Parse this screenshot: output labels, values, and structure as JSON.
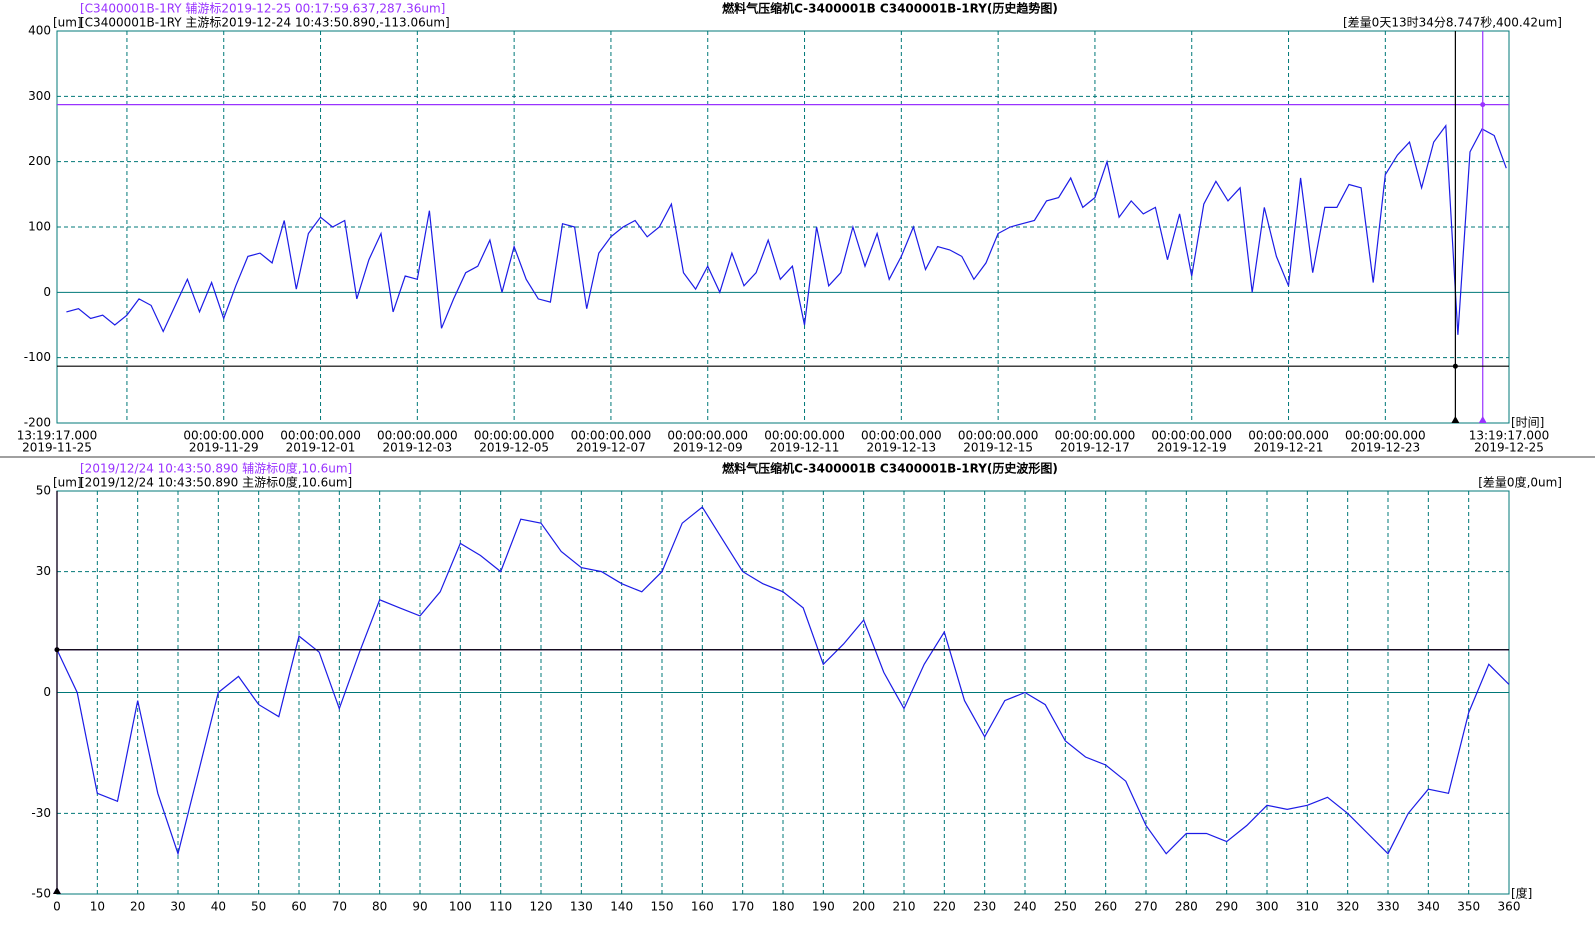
{
  "chart_data": [
    {
      "type": "line",
      "title": "燃料气压缩机C-3400001B C3400001B-1RY(历史趋势图)",
      "y_label": "[um]",
      "x_label": "[时间]",
      "diff_label": "[差量0天13时34分8.747秒,400.42um]",
      "cursors": [
        {
          "label": "[C3400001B-1RY 辅游标2019-12-25 00:17:59.637,287.36um]",
          "x": "2019-12-25 00:17:59.637",
          "y": 287.36,
          "color": "#9933ff"
        },
        {
          "label": "[C3400001B-1RY 主游标2019-12-24 10:43:50.890,-113.06um]",
          "x": "2019-12-24 10:43:50.890",
          "y": -113.06,
          "color": "#000000"
        }
      ],
      "xlim": [
        "2019-11-25 13:19:17.000",
        "2019-12-25 13:19:17.000"
      ],
      "xticks": [
        {
          "value": "2019-11-25 13:19:17.000",
          "label": [
            "13:19:17.000",
            "2019-11-25"
          ]
        },
        {
          "value": "2019-11-27 00:00:00.000",
          "label": null
        },
        {
          "value": "2019-11-29 00:00:00.000",
          "label": [
            "00:00:00.000",
            "2019-11-29"
          ]
        },
        {
          "value": "2019-12-01 00:00:00.000",
          "label": [
            "00:00:00.000",
            "2019-12-01"
          ]
        },
        {
          "value": "2019-12-03 00:00:00.000",
          "label": [
            "00:00:00.000",
            "2019-12-03"
          ]
        },
        {
          "value": "2019-12-05 00:00:00.000",
          "label": [
            "00:00:00.000",
            "2019-12-05"
          ]
        },
        {
          "value": "2019-12-07 00:00:00.000",
          "label": [
            "00:00:00.000",
            "2019-12-07"
          ]
        },
        {
          "value": "2019-12-09 00:00:00.000",
          "label": [
            "00:00:00.000",
            "2019-12-09"
          ]
        },
        {
          "value": "2019-12-11 00:00:00.000",
          "label": [
            "00:00:00.000",
            "2019-12-11"
          ]
        },
        {
          "value": "2019-12-13 00:00:00.000",
          "label": [
            "00:00:00.000",
            "2019-12-13"
          ]
        },
        {
          "value": "2019-12-15 00:00:00.000",
          "label": [
            "00:00:00.000",
            "2019-12-15"
          ]
        },
        {
          "value": "2019-12-17 00:00:00.000",
          "label": [
            "00:00:00.000",
            "2019-12-17"
          ]
        },
        {
          "value": "2019-12-19 00:00:00.000",
          "label": [
            "00:00:00.000",
            "2019-12-19"
          ]
        },
        {
          "value": "2019-12-21 00:00:00.000",
          "label": [
            "00:00:00.000",
            "2019-12-21"
          ]
        },
        {
          "value": "2019-12-23 00:00:00.000",
          "label": [
            "00:00:00.000",
            "2019-12-23"
          ]
        },
        {
          "value": "2019-12-25 13:19:17.000",
          "label": [
            "13:19:17.000",
            "2019-12-25"
          ]
        }
      ],
      "ylim": [
        -200,
        400
      ],
      "yticks": [
        -200,
        -100,
        0,
        100,
        200,
        300,
        400
      ],
      "grid": true,
      "zero_line": true,
      "frame_color": "#007878",
      "series": [
        {
          "color": "#1c1ce6",
          "x": [
            "2019-11-25 18:00",
            "2019-11-26 00:00",
            "2019-11-26 06:00",
            "2019-11-26 12:00",
            "2019-11-26 18:00",
            "2019-11-27 00:00",
            "2019-11-27 06:00",
            "2019-11-27 12:00",
            "2019-11-27 18:00",
            "2019-11-28 00:00",
            "2019-11-28 06:00",
            "2019-11-28 12:00",
            "2019-11-28 18:00",
            "2019-11-29 00:00",
            "2019-11-29 06:00",
            "2019-11-29 12:00",
            "2019-11-29 18:00",
            "2019-11-30 00:00",
            "2019-11-30 06:00",
            "2019-11-30 12:00",
            "2019-11-30 18:00",
            "2019-12-01 00:00",
            "2019-12-01 06:00",
            "2019-12-01 12:00",
            "2019-12-01 18:00",
            "2019-12-02 00:00",
            "2019-12-02 06:00",
            "2019-12-02 12:00",
            "2019-12-02 18:00",
            "2019-12-03 00:00",
            "2019-12-03 06:00",
            "2019-12-03 12:00",
            "2019-12-03 18:00",
            "2019-12-04 00:00",
            "2019-12-04 06:00",
            "2019-12-04 12:00",
            "2019-12-04 18:00",
            "2019-12-05 00:00",
            "2019-12-05 06:00",
            "2019-12-05 12:00",
            "2019-12-05 18:00",
            "2019-12-06 00:00",
            "2019-12-06 06:00",
            "2019-12-06 12:00",
            "2019-12-06 18:00",
            "2019-12-07 00:00",
            "2019-12-07 06:00",
            "2019-12-07 12:00",
            "2019-12-07 18:00",
            "2019-12-08 00:00",
            "2019-12-08 06:00",
            "2019-12-08 12:00",
            "2019-12-08 18:00",
            "2019-12-09 00:00",
            "2019-12-09 06:00",
            "2019-12-09 12:00",
            "2019-12-09 18:00",
            "2019-12-10 00:00",
            "2019-12-10 06:00",
            "2019-12-10 12:00",
            "2019-12-10 18:00",
            "2019-12-11 00:00",
            "2019-12-11 06:00",
            "2019-12-11 12:00",
            "2019-12-11 18:00",
            "2019-12-12 00:00",
            "2019-12-12 06:00",
            "2019-12-12 12:00",
            "2019-12-12 18:00",
            "2019-12-13 00:00",
            "2019-12-13 06:00",
            "2019-12-13 12:00",
            "2019-12-13 18:00",
            "2019-12-14 00:00",
            "2019-12-14 06:00",
            "2019-12-14 12:00",
            "2019-12-14 18:00",
            "2019-12-15 00:00",
            "2019-12-15 06:00",
            "2019-12-15 12:00",
            "2019-12-15 18:00",
            "2019-12-16 00:00",
            "2019-12-16 06:00",
            "2019-12-16 12:00",
            "2019-12-16 18:00",
            "2019-12-17 00:00",
            "2019-12-17 06:00",
            "2019-12-17 12:00",
            "2019-12-17 18:00",
            "2019-12-18 00:00",
            "2019-12-18 06:00",
            "2019-12-18 12:00",
            "2019-12-18 18:00",
            "2019-12-19 00:00",
            "2019-12-19 06:00",
            "2019-12-19 12:00",
            "2019-12-19 18:00",
            "2019-12-20 00:00",
            "2019-12-20 06:00",
            "2019-12-20 12:00",
            "2019-12-20 18:00",
            "2019-12-21 00:00",
            "2019-12-21 06:00",
            "2019-12-21 12:00",
            "2019-12-21 18:00",
            "2019-12-22 00:00",
            "2019-12-22 06:00",
            "2019-12-22 12:00",
            "2019-12-22 18:00",
            "2019-12-23 00:00",
            "2019-12-23 06:00",
            "2019-12-23 12:00",
            "2019-12-23 18:00",
            "2019-12-24 00:00",
            "2019-12-24 06:00",
            "2019-12-24 12:00",
            "2019-12-24 18:00",
            "2019-12-25 00:00",
            "2019-12-25 06:00",
            "2019-12-25 12:00"
          ],
          "values": [
            -30,
            -25,
            -40,
            -35,
            -50,
            -35,
            -10,
            -20,
            -60,
            -20,
            20,
            -30,
            15,
            -40,
            10,
            55,
            60,
            45,
            110,
            5,
            90,
            115,
            100,
            110,
            -10,
            50,
            90,
            -30,
            25,
            20,
            125,
            -55,
            -10,
            30,
            40,
            80,
            0,
            70,
            20,
            -10,
            -15,
            105,
            100,
            -25,
            60,
            85,
            100,
            110,
            85,
            100,
            135,
            30,
            5,
            40,
            0,
            60,
            10,
            30,
            80,
            20,
            40,
            -50,
            100,
            10,
            30,
            100,
            40,
            90,
            20,
            55,
            100,
            35,
            70,
            65,
            55,
            20,
            45,
            90,
            100,
            105,
            110,
            140,
            145,
            175,
            130,
            145,
            200,
            115,
            140,
            120,
            130,
            50,
            120,
            25,
            135,
            170,
            140,
            160,
            0,
            130,
            55,
            10,
            175,
            30,
            130,
            130,
            165,
            160,
            15,
            180,
            210,
            230,
            160,
            230,
            255,
            -65,
            215,
            250,
            240,
            190
          ]
        }
      ]
    },
    {
      "type": "line",
      "title": "燃料气压缩机C-3400001B C3400001B-1RY(历史波形图)",
      "y_label": "[um]",
      "x_label": "[度]",
      "diff_label": "[差量0度,0um]",
      "cursors": [
        {
          "label": "[2019/12/24 10:43:50.890 辅游标0度,10.6um]",
          "x": 0,
          "y": 10.6,
          "color": "#9933ff"
        },
        {
          "label": "[2019/12/24 10:43:50.890 主游标0度,10.6um]",
          "x": 0,
          "y": 10.6,
          "color": "#000000"
        }
      ],
      "xlim": [
        0,
        360
      ],
      "xticks": [
        0,
        10,
        20,
        30,
        40,
        50,
        60,
        70,
        80,
        90,
        100,
        110,
        120,
        130,
        140,
        150,
        160,
        170,
        180,
        190,
        200,
        210,
        220,
        230,
        240,
        250,
        260,
        270,
        280,
        290,
        300,
        310,
        320,
        330,
        340,
        350,
        360
      ],
      "ylim": [
        -50,
        50
      ],
      "yticks": [
        -50,
        -30,
        0,
        30,
        50
      ],
      "grid": true,
      "zero_line": true,
      "frame_color": "#007878",
      "series": [
        {
          "color": "#1c1ce6",
          "x": [
            0,
            5,
            10,
            15,
            20,
            25,
            30,
            35,
            40,
            45,
            50,
            55,
            60,
            65,
            70,
            75,
            80,
            85,
            90,
            95,
            100,
            105,
            110,
            115,
            120,
            125,
            130,
            135,
            140,
            145,
            150,
            155,
            160,
            165,
            170,
            175,
            180,
            185,
            190,
            195,
            200,
            205,
            210,
            215,
            220,
            225,
            230,
            235,
            240,
            245,
            250,
            255,
            260,
            265,
            270,
            275,
            280,
            285,
            290,
            295,
            300,
            305,
            310,
            315,
            320,
            325,
            330,
            335,
            340,
            345,
            350,
            355,
            360
          ],
          "values": [
            10.6,
            0,
            -25,
            -27,
            -2,
            -25,
            -40,
            -20,
            0,
            4,
            -3,
            -6,
            14,
            10,
            -4,
            10,
            23,
            21,
            19,
            25,
            37,
            34,
            30,
            43,
            42,
            35,
            31,
            30,
            27,
            25,
            30,
            42,
            46,
            38,
            30,
            27,
            25,
            21,
            7,
            12,
            18,
            5,
            -4,
            7,
            15,
            -2,
            -11,
            -2,
            0,
            -3,
            -12,
            -16,
            -18,
            -22,
            -33,
            -40,
            -35,
            -35,
            -37,
            -33,
            -28,
            -29,
            -28,
            -26,
            -30,
            -35,
            -40,
            -30,
            -24,
            -25,
            -5,
            7,
            2
          ]
        }
      ]
    }
  ]
}
